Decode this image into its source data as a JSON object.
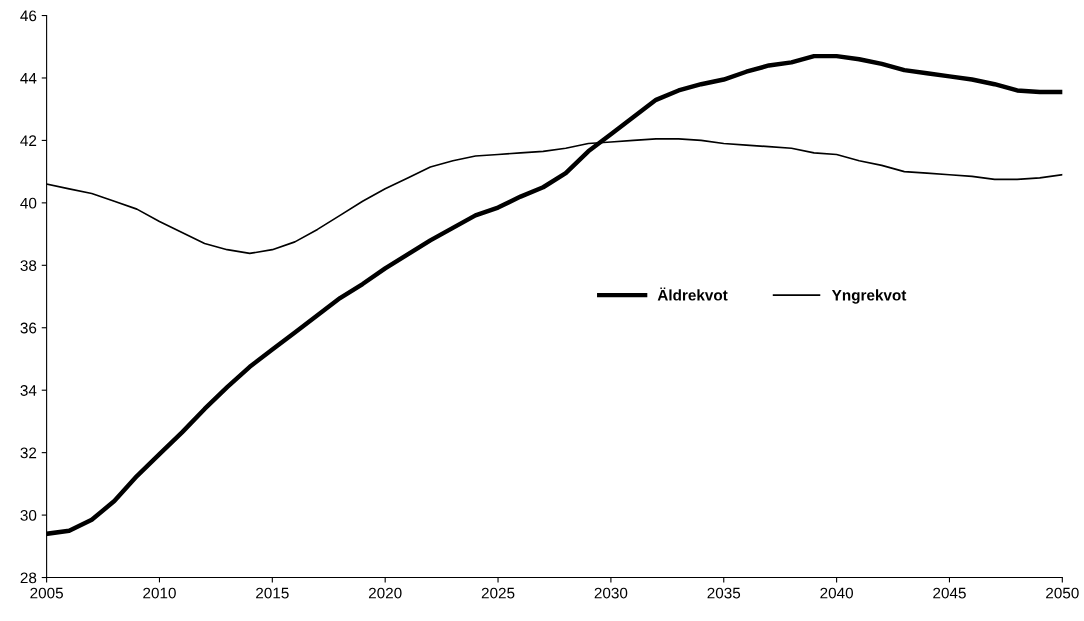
{
  "chart_data": {
    "type": "line",
    "x": [
      2005,
      2006,
      2007,
      2008,
      2009,
      2010,
      2011,
      2012,
      2013,
      2014,
      2015,
      2016,
      2017,
      2018,
      2019,
      2020,
      2021,
      2022,
      2023,
      2024,
      2025,
      2026,
      2027,
      2028,
      2029,
      2030,
      2031,
      2032,
      2033,
      2034,
      2035,
      2036,
      2037,
      2038,
      2039,
      2040,
      2041,
      2042,
      2043,
      2044,
      2045,
      2046,
      2047,
      2048,
      2049,
      2050
    ],
    "series": [
      {
        "name": "Äldrekvot",
        "color": "#000000",
        "values": [
          29.4,
          29.5,
          29.85,
          30.45,
          31.25,
          31.95,
          32.65,
          33.4,
          34.1,
          34.75,
          35.3,
          35.85,
          36.4,
          36.95,
          37.4,
          37.9,
          38.35,
          38.8,
          39.2,
          39.6,
          39.85,
          40.2,
          40.5,
          40.95,
          41.65,
          42.2,
          42.75,
          43.3,
          43.6,
          43.8,
          43.95,
          44.2,
          44.4,
          44.5,
          44.7,
          44.7,
          44.6,
          44.45,
          44.25,
          44.15,
          44.05,
          43.95,
          43.8,
          43.6,
          43.55,
          43.55
        ]
      },
      {
        "name": "Yngrekvot",
        "color": "#000000",
        "values": [
          40.6,
          40.45,
          40.3,
          40.05,
          39.8,
          39.4,
          39.05,
          38.7,
          38.5,
          38.38,
          38.5,
          38.75,
          39.15,
          39.6,
          40.05,
          40.45,
          40.8,
          41.15,
          41.35,
          41.5,
          41.55,
          41.6,
          41.65,
          41.75,
          41.9,
          41.95,
          42.0,
          42.05,
          42.05,
          42.0,
          41.9,
          41.85,
          41.8,
          41.75,
          41.6,
          41.55,
          41.35,
          41.2,
          41.0,
          40.95,
          40.9,
          40.85,
          40.75,
          40.75,
          40.8,
          40.9
        ]
      }
    ],
    "xlim": [
      2005,
      2050
    ],
    "xticks": [
      2005,
      2010,
      2015,
      2020,
      2025,
      2030,
      2035,
      2040,
      2045,
      2050
    ],
    "ylim": [
      28,
      46
    ],
    "yticks": [
      28,
      30,
      32,
      34,
      36,
      38,
      40,
      42,
      44,
      46
    ],
    "grid": false,
    "legend": "right",
    "marker": "none",
    "line_style": "solid"
  }
}
